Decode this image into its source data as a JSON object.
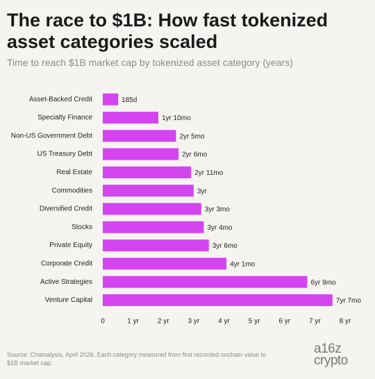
{
  "chart_data": {
    "type": "bar",
    "orientation": "horizontal",
    "title": "The race to $1B: How fast tokenized asset categories scaled",
    "subtitle": "Time to reach $1B market cap by tokenized asset category (years)",
    "categories": [
      "Asset-Backed Credit",
      "Specialty Finance",
      "Non-US Government Debt",
      "US Treasury Debt",
      "Real Estate",
      "Commodities",
      "Diversified Credit",
      "Stocks",
      "Private Equity",
      "Corporate Credit",
      "Active Strategies",
      "Venture Capital"
    ],
    "values": [
      0.507,
      1.833,
      2.417,
      2.5,
      2.917,
      3,
      3.25,
      3.333,
      3.5,
      4.083,
      6.75,
      7.583
    ],
    "value_labels": [
      "185d",
      "1yr 10mo",
      "2yr 5mo",
      "2yr 6mo",
      "2yr 11mo",
      "3yr",
      "3yr 3mo",
      "3yr 4mo",
      "3yr 6mo",
      "4yr 1mo",
      "6yr 9mo",
      "7yr 7mo"
    ],
    "color": "#d444f1",
    "xlim": [
      0,
      8
    ],
    "xticks": [
      0,
      {
        "value": 1,
        "label": "1 yr"
      },
      {
        "value": 2,
        "label": "2 yr"
      },
      {
        "value": 3,
        "label": "3 yr"
      },
      {
        "value": 4,
        "label": "4 yr"
      },
      {
        "value": 5,
        "label": "5 yr"
      },
      {
        "value": 6,
        "label": "6 yr"
      },
      {
        "value": 7,
        "label": "7 yr"
      },
      {
        "value": 8,
        "label": "8 yr"
      }
    ],
    "source": "Source: Chainalysis, April 2026. Each category measured from first recorded onchain value to $1B market cap.",
    "logo": [
      "a16z",
      "crypto"
    ]
  }
}
